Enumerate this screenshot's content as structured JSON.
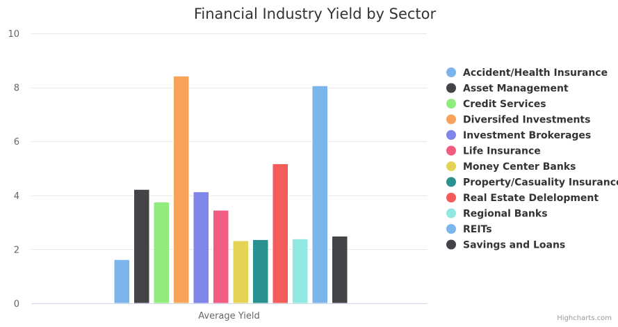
{
  "chart_data": {
    "type": "bar",
    "title": "Financial Industry Yield by Sector",
    "categories": [
      "Average Yield"
    ],
    "ylim": [
      0,
      10
    ],
    "yticks": [
      0,
      2,
      4,
      6,
      8,
      10
    ],
    "grid": true,
    "legend_position": "right",
    "series": [
      {
        "name": "Accident/Health Insurance",
        "values": [
          1.62
        ],
        "color": "#7cb5ec"
      },
      {
        "name": "Asset Management",
        "values": [
          4.22
        ],
        "color": "#434348"
      },
      {
        "name": "Credit Services",
        "values": [
          3.75
        ],
        "color": "#90ed7d"
      },
      {
        "name": "Diversifed Investments",
        "values": [
          8.42
        ],
        "color": "#f7a35c"
      },
      {
        "name": "Investment Brokerages",
        "values": [
          4.13
        ],
        "color": "#8085e9"
      },
      {
        "name": "Life Insurance",
        "values": [
          3.45
        ],
        "color": "#f15c80"
      },
      {
        "name": "Money Center Banks",
        "values": [
          2.32
        ],
        "color": "#e4d354"
      },
      {
        "name": "Property/Casuality Insurance",
        "values": [
          2.36
        ],
        "color": "#2b908f"
      },
      {
        "name": "Real Estate Delelopment",
        "values": [
          5.17
        ],
        "color": "#f45b5b"
      },
      {
        "name": "Regional Banks",
        "values": [
          2.39
        ],
        "color": "#91e8e1"
      },
      {
        "name": "REITs",
        "values": [
          8.06
        ],
        "color": "#7cb5ec"
      },
      {
        "name": "Savings and Loans",
        "values": [
          2.49
        ],
        "color": "#434348"
      }
    ]
  },
  "credit": "Highcharts.com"
}
